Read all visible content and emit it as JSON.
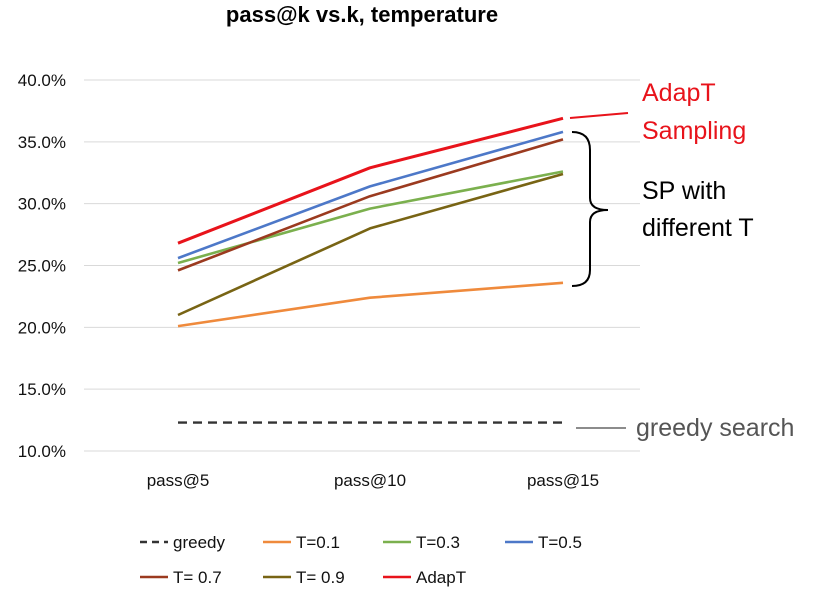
{
  "chart_data": {
    "type": "line",
    "title": "pass@k vs.k, temperature",
    "xlabel": "",
    "ylabel": "",
    "categories": [
      "pass@5",
      "pass@10",
      "pass@15"
    ],
    "ylim": [
      10.0,
      40.0
    ],
    "yticks": [
      "10.0%",
      "15.0%",
      "20.0%",
      "25.0%",
      "30.0%",
      "35.0%",
      "40.0%"
    ],
    "grid": true,
    "legend_position": "bottom",
    "series": [
      {
        "name": "greedy",
        "values": [
          12.3,
          12.3,
          12.3
        ],
        "color": "#333333",
        "dash": true
      },
      {
        "name": "T=0.1",
        "values": [
          20.1,
          22.4,
          23.6
        ],
        "color": "#ef8a3c",
        "dash": false
      },
      {
        "name": "T=0.3",
        "values": [
          25.2,
          29.6,
          32.6
        ],
        "color": "#7bb04e",
        "dash": false
      },
      {
        "name": "T=0.5",
        "values": [
          25.6,
          31.4,
          35.8
        ],
        "color": "#4d78c8",
        "dash": false
      },
      {
        "name": "T= 0.7",
        "values": [
          24.6,
          30.6,
          35.2
        ],
        "color": "#9b3a1f",
        "dash": false
      },
      {
        "name": "T= 0.9",
        "values": [
          21.0,
          28.0,
          32.4
        ],
        "color": "#786414",
        "dash": false
      },
      {
        "name": "AdapT",
        "values": [
          26.8,
          32.9,
          36.9
        ],
        "color": "#e8131b",
        "dash": false
      }
    ],
    "annotations": {
      "adapt": [
        "AdapT",
        "Sampling"
      ],
      "sp": [
        "SP with",
        "different T"
      ],
      "greedy": "greedy search"
    }
  }
}
